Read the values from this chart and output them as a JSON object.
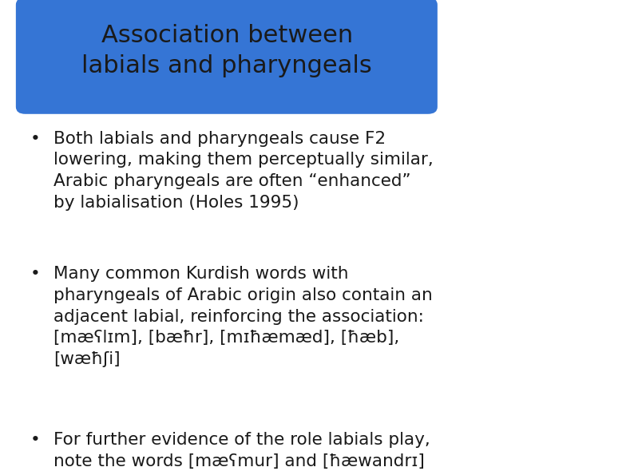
{
  "title_line1": "Association between",
  "title_line2": "labials and pharyngeals",
  "title_bg_color": "#3575D5",
  "title_text_color": "#1a1a1a",
  "slide_bg_color": "#ffffff",
  "bullet_color": "#1a1a1a",
  "bullet1": "Both labials and pharyngeals cause F2\nlowering, making them perceptually similar,\nArabic pharyngeals are often “enhanced”\nby labialisation (Holes 1995)",
  "bullet2": "Many common Kurdish words with\npharyngeals of Arabic origin also contain an\nadjacent labial, reinforcing the association:\n[mæʕlɪm], [bæħr], [mɪħæmæd], [ħæb],\n[wæħʃi]",
  "bullet3": "For further evidence of the role labials play,\nnote the words [mæʕmur] and [ħæwandrɪ]",
  "bullet_dot": "•",
  "font_family": "DejaVu Sans",
  "title_fontsize": 22,
  "bullet_fontsize": 15.5,
  "figwidth": 7.94,
  "figheight": 5.95,
  "dpi": 100
}
